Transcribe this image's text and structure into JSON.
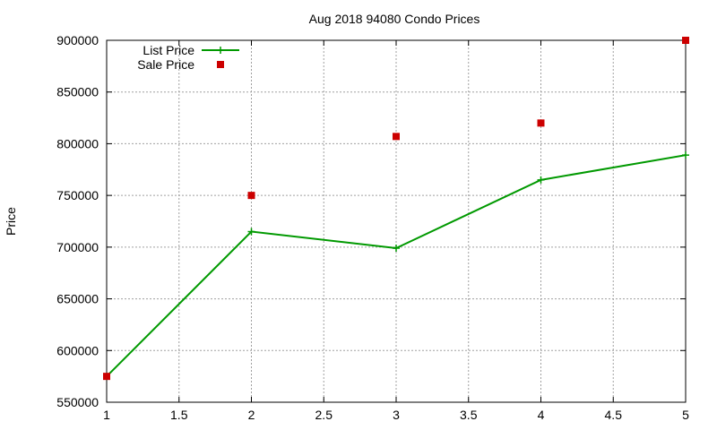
{
  "chart_data": {
    "type": "line",
    "title": "Aug 2018 94080 Condo Prices",
    "xlabel": "",
    "ylabel": "Price",
    "xlim": [
      1,
      5
    ],
    "ylim": [
      550000,
      900000
    ],
    "xticks": [
      "1",
      "1.5",
      "2",
      "2.5",
      "3",
      "3.5",
      "4",
      "4.5",
      "5"
    ],
    "yticks": [
      "550000",
      "600000",
      "650000",
      "700000",
      "750000",
      "800000",
      "850000",
      "900000"
    ],
    "grid": true,
    "legend_position": "top-left",
    "series": [
      {
        "name": "List Price",
        "style": "line-with-plus-markers",
        "color": "#009900",
        "x": [
          1,
          2,
          3,
          4,
          5
        ],
        "y": [
          575000,
          715000,
          699000,
          765000,
          789000
        ]
      },
      {
        "name": "Sale Price",
        "style": "square-markers",
        "color": "#cc0000",
        "x": [
          1,
          2,
          3,
          4,
          5
        ],
        "y": [
          575000,
          750000,
          807000,
          820000,
          900000
        ]
      }
    ]
  }
}
